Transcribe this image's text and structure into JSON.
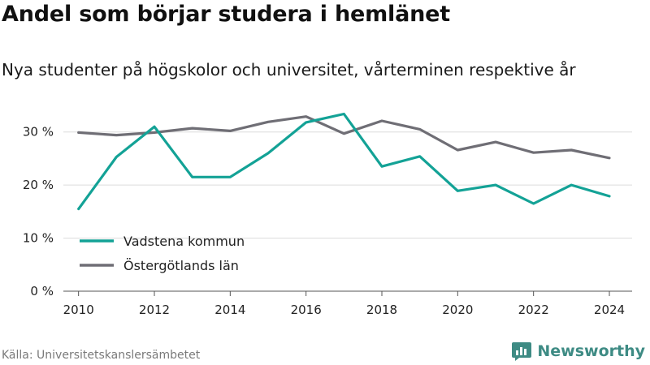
{
  "title": "Andel som börjar studera i hemlänet",
  "subtitle": "Nya studenter på högskolor och universitet, vårterminen respektive år",
  "source": "Källa: Universitetskanslersämbetet",
  "brand": {
    "name": "Newsworthy",
    "icon": "newsworthy-logo-icon",
    "color": "#3e8b84"
  },
  "chart_data": {
    "type": "line",
    "x": [
      2010,
      2011,
      2012,
      2013,
      2014,
      2015,
      2016,
      2017,
      2018,
      2019,
      2020,
      2021,
      2022,
      2023,
      2024
    ],
    "xticks": [
      2010,
      2012,
      2014,
      2016,
      2018,
      2020,
      2022,
      2024
    ],
    "xtick_labels": [
      "2010",
      "2012",
      "2014",
      "2016",
      "2018",
      "2020",
      "2022",
      "2024"
    ],
    "yticks": [
      0,
      10,
      20,
      30
    ],
    "ytick_labels": [
      "0 %",
      "10 %",
      "20 %",
      "30 %"
    ],
    "ylim": [
      0,
      35
    ],
    "xlim": [
      2009.6,
      2024.6
    ],
    "grid": true,
    "legend_position": "bottom-left",
    "series": [
      {
        "name": "Vadstena kommun",
        "color": "#13a296",
        "values": [
          15.5,
          25.3,
          31.0,
          21.5,
          21.5,
          26.0,
          31.8,
          33.4,
          23.5,
          25.4,
          18.9,
          20.0,
          16.5,
          20.0,
          17.9
        ]
      },
      {
        "name": "Östergötlands län",
        "color": "#6f6e75",
        "values": [
          29.9,
          29.4,
          29.9,
          30.7,
          30.2,
          31.9,
          32.9,
          29.7,
          32.1,
          30.5,
          26.6,
          28.1,
          26.1,
          26.6,
          25.1
        ]
      }
    ]
  }
}
